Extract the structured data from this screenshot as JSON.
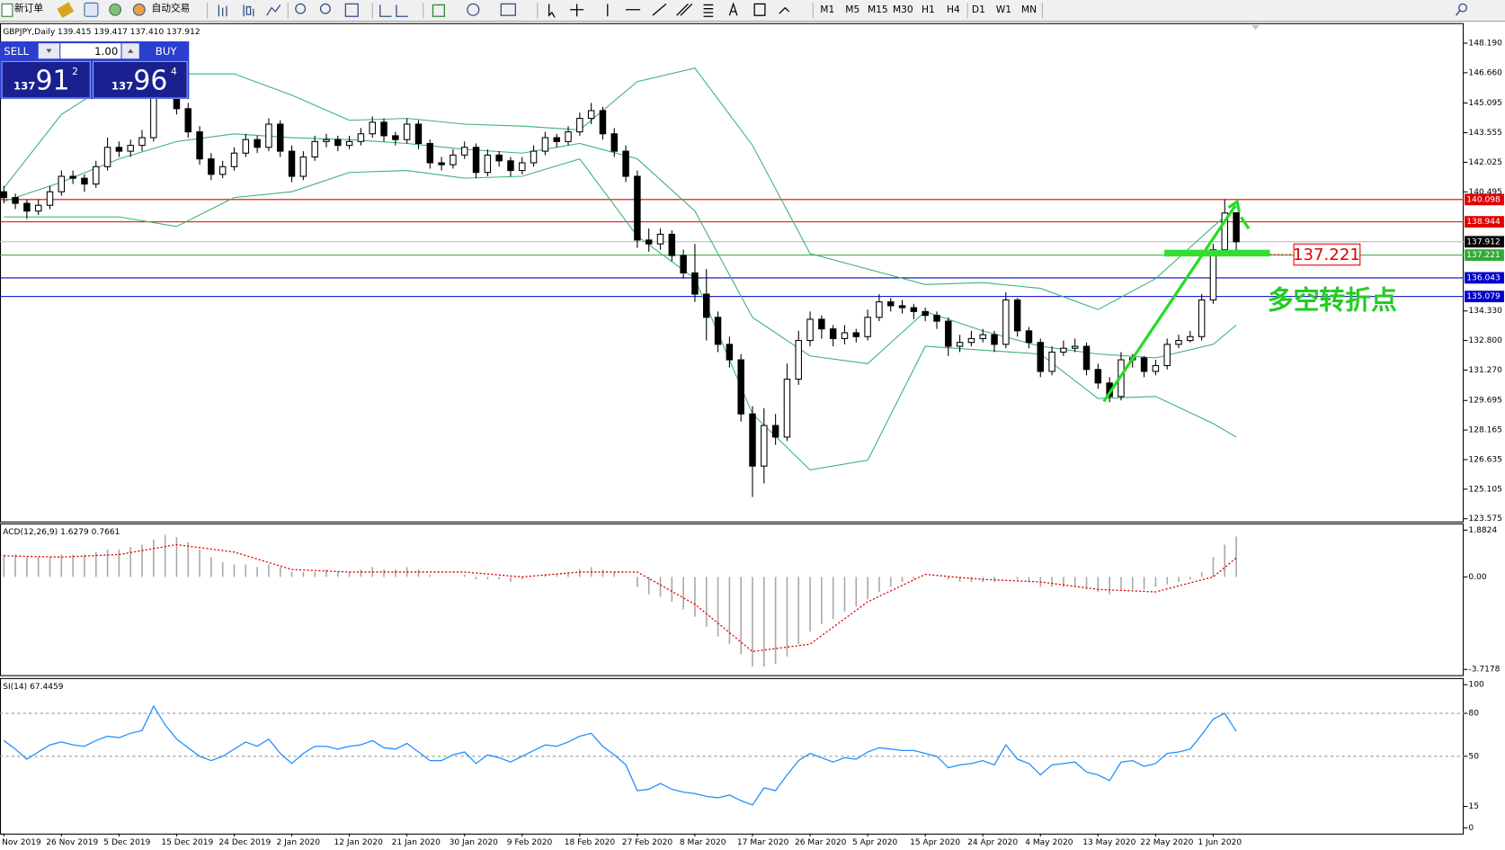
{
  "toolbar": {
    "new_order": "新订单",
    "auto_trading": "自动交易",
    "timeframes": [
      "M1",
      "M5",
      "M15",
      "M30",
      "H1",
      "H4",
      "D1",
      "W1",
      "MN"
    ]
  },
  "trade_panel": {
    "sell": "SELL",
    "buy": "BUY",
    "volume": "1.00",
    "bid": [
      "137",
      "91",
      "2"
    ],
    "ask": [
      "137",
      "96",
      "4"
    ]
  },
  "chart_data": [
    {
      "type": "candlestick",
      "title": "GBPJPY,Daily 139.415 139.417 137.410 137.912",
      "xlim": [
        -0.3333,
        126.75
      ],
      "ylim": [
        123.43,
        149.18
      ],
      "yticks": [
        {
          "value": 148.19,
          "label": "148.190"
        },
        {
          "value": 146.66,
          "label": "146.660"
        },
        145.095,
        143.555,
        142.025,
        140.495,
        {
          "value": 134.33,
          "label": "134.330"
        },
        {
          "value": 132.8,
          "label": "132.800"
        },
        {
          "value": 131.27,
          "label": "131.270"
        },
        129.695,
        128.165,
        126.635,
        125.105,
        123.575
      ],
      "open": [
        140.5,
        140.2,
        139.9,
        139.5,
        139.8,
        140.5,
        141.3,
        141.2,
        140.9,
        141.8,
        142.8,
        142.6,
        142.9,
        143.3,
        146.0,
        147.2,
        144.8,
        143.6,
        142.2,
        141.4,
        141.8,
        142.5,
        143.2,
        142.8,
        144.0,
        142.6,
        141.3,
        142.3,
        143.1,
        143.2,
        142.9,
        143.1,
        143.5,
        144.1,
        143.4,
        143.2,
        144.0,
        143.0,
        142.0,
        141.9,
        142.4,
        142.8,
        141.5,
        142.4,
        142.1,
        141.6,
        142.0,
        142.6,
        143.3,
        143.1,
        143.6,
        144.3,
        144.7,
        143.5,
        142.6,
        141.3,
        138.0,
        137.8,
        138.3,
        137.2,
        136.3,
        135.2,
        134.0,
        132.6,
        131.8,
        129.0,
        126.3,
        128.4,
        127.8,
        130.8,
        132.8,
        133.9,
        133.4,
        132.9,
        133.2,
        133.0,
        134.0,
        134.8,
        134.6,
        134.5,
        134.3,
        134.1,
        133.8,
        132.5,
        132.7,
        132.9,
        133.1,
        132.6,
        134.9,
        133.3,
        132.7,
        131.2,
        132.2,
        132.4,
        132.5,
        131.3,
        130.6,
        129.9,
        131.8,
        131.9,
        131.2,
        131.5,
        132.6,
        132.8,
        133.0,
        134.9,
        137.5,
        139.415
      ],
      "high": [
        140.8,
        140.4,
        140.1,
        140.1,
        140.8,
        141.6,
        141.6,
        141.4,
        142.1,
        143.3,
        143.1,
        143.2,
        143.7,
        146.6,
        147.9,
        147.4,
        145.1,
        143.9,
        142.5,
        142.1,
        142.8,
        143.5,
        143.4,
        144.3,
        144.2,
        142.9,
        142.6,
        143.4,
        143.5,
        143.4,
        143.4,
        143.8,
        144.4,
        144.3,
        143.6,
        144.3,
        144.2,
        143.2,
        142.3,
        142.7,
        143.1,
        143.0,
        142.7,
        142.6,
        142.3,
        142.3,
        142.9,
        143.6,
        143.5,
        143.9,
        144.6,
        145.1,
        144.9,
        143.8,
        142.9,
        141.6,
        138.6,
        138.6,
        138.5,
        137.5,
        137.8,
        136.5,
        134.3,
        133.0,
        132.1,
        129.4,
        129.3,
        129.0,
        131.6,
        133.3,
        134.3,
        134.1,
        133.6,
        133.6,
        133.4,
        134.4,
        135.2,
        135.0,
        134.9,
        134.7,
        134.5,
        134.3,
        134.0,
        133.1,
        133.3,
        133.4,
        133.3,
        135.3,
        135.0,
        133.5,
        132.9,
        132.5,
        132.8,
        132.9,
        132.7,
        131.6,
        130.9,
        132.2,
        132.1,
        132.0,
        131.8,
        132.9,
        133.1,
        133.3,
        135.2,
        137.8,
        140.1,
        139.417
      ],
      "low": [
        139.9,
        139.6,
        139.1,
        139.3,
        139.6,
        140.3,
        140.9,
        140.5,
        140.7,
        141.6,
        142.3,
        142.3,
        142.6,
        143.1,
        145.6,
        144.5,
        143.3,
        141.9,
        141.1,
        141.2,
        141.6,
        142.3,
        142.5,
        142.6,
        142.3,
        141.0,
        141.1,
        142.1,
        142.8,
        142.6,
        142.7,
        142.9,
        143.3,
        143.1,
        142.9,
        143.0,
        142.7,
        141.7,
        141.6,
        141.7,
        142.2,
        141.2,
        141.3,
        141.8,
        141.3,
        141.4,
        141.8,
        142.4,
        142.8,
        142.9,
        143.4,
        144.0,
        143.2,
        142.3,
        141.0,
        137.6,
        137.4,
        137.5,
        136.9,
        136.0,
        134.8,
        132.8,
        132.2,
        131.4,
        128.6,
        124.7,
        125.4,
        127.4,
        127.6,
        130.5,
        132.5,
        132.9,
        132.5,
        132.6,
        132.7,
        132.8,
        133.8,
        134.3,
        134.2,
        133.9,
        133.8,
        133.4,
        132.0,
        132.2,
        132.5,
        132.7,
        132.2,
        132.4,
        133.0,
        132.4,
        130.9,
        131.0,
        132.0,
        132.2,
        131.0,
        130.3,
        129.6,
        129.7,
        131.4,
        130.9,
        131.0,
        131.3,
        132.4,
        132.7,
        132.8,
        134.7,
        137.3,
        137.41
      ],
      "close": [
        140.2,
        139.9,
        139.5,
        139.8,
        140.5,
        141.3,
        141.2,
        140.9,
        141.8,
        142.8,
        142.6,
        142.9,
        143.3,
        146.0,
        147.2,
        144.8,
        143.6,
        142.2,
        141.4,
        141.8,
        142.5,
        143.2,
        142.8,
        144.0,
        142.6,
        141.3,
        142.3,
        143.1,
        143.2,
        142.9,
        143.1,
        143.5,
        144.1,
        143.4,
        143.2,
        144.0,
        143.0,
        142.0,
        141.9,
        142.4,
        142.8,
        141.5,
        142.4,
        142.1,
        141.6,
        142.0,
        142.6,
        143.3,
        143.1,
        143.6,
        144.3,
        144.7,
        143.5,
        142.6,
        141.3,
        138.0,
        137.8,
        138.3,
        137.2,
        136.3,
        135.2,
        134.0,
        132.6,
        131.8,
        129.0,
        126.3,
        128.4,
        127.8,
        130.8,
        132.8,
        133.9,
        133.4,
        132.9,
        133.2,
        133.0,
        134.0,
        134.8,
        134.6,
        134.5,
        134.3,
        134.1,
        133.8,
        132.5,
        132.7,
        132.9,
        133.1,
        132.6,
        134.9,
        133.3,
        132.7,
        131.2,
        132.2,
        132.4,
        132.5,
        131.3,
        130.6,
        129.9,
        131.8,
        131.9,
        131.2,
        131.5,
        132.6,
        132.8,
        133.0,
        134.9,
        137.5,
        139.4,
        137.912
      ],
      "bands": {
        "color": "#3cb371",
        "x": [
          0,
          5,
          10,
          15,
          20,
          25,
          30,
          35,
          40,
          45,
          50,
          55,
          60,
          65,
          70,
          75,
          80,
          85,
          90,
          95,
          100,
          105,
          107
        ],
        "upper": [
          140.7,
          144.5,
          146.4,
          146.6,
          146.6,
          145.5,
          144.2,
          144.3,
          144.0,
          143.9,
          143.7,
          146.2,
          146.9,
          142.9,
          137.3,
          136.5,
          135.7,
          135.8,
          135.5,
          134.4,
          136.0,
          138.7,
          139.7
        ],
        "middle": [
          140.0,
          141.0,
          142.2,
          143.1,
          143.5,
          143.3,
          143.2,
          143.0,
          142.7,
          142.5,
          143.0,
          142.2,
          139.5,
          134.0,
          132.0,
          131.6,
          134.3,
          133.3,
          132.5,
          132.1,
          131.9,
          132.6,
          133.6
        ],
        "lower": [
          139.2,
          139.2,
          139.2,
          138.7,
          140.2,
          140.5,
          141.5,
          141.6,
          141.2,
          141.3,
          142.2,
          138.2,
          136.0,
          129.0,
          126.1,
          126.6,
          132.5,
          132.3,
          132.1,
          129.8,
          129.9,
          128.5,
          127.8
        ]
      },
      "levels": [
        {
          "value": 140.098,
          "color": "#e00000"
        },
        {
          "value": 138.944,
          "color": "#e00000"
        },
        {
          "value": 137.912,
          "color": "#b4b4b4",
          "label_color": "#000000"
        },
        {
          "value": 137.221,
          "color": "#33aa33"
        },
        {
          "value": 136.043,
          "color": "#0000cc"
        },
        {
          "value": 135.079,
          "color": "#0000cc"
        }
      ],
      "annotation": "137.221",
      "annotation_text": "多空转折点"
    },
    {
      "type": "macd",
      "title": "ACD(12,26,9) 1.6279 0.7661",
      "xlim": [
        -0.3333,
        126.75
      ],
      "ylim": [
        -3.948,
        2.113
      ],
      "yticks": [
        1.8824,
        {
          "value": 0,
          "label": "0.00"
        },
        -3.7178
      ],
      "color": "#a8a8a8",
      "histogram": [
        0.9,
        0.9,
        0.8,
        0.8,
        0.8,
        0.9,
        0.9,
        0.9,
        1.0,
        1.1,
        1.1,
        1.2,
        1.3,
        1.5,
        1.7,
        1.6,
        1.4,
        1.1,
        0.8,
        0.6,
        0.5,
        0.5,
        0.4,
        0.5,
        0.4,
        0.2,
        0.2,
        0.2,
        0.3,
        0.2,
        0.2,
        0.3,
        0.4,
        0.3,
        0.3,
        0.4,
        0.3,
        0.1,
        0.0,
        0.0,
        0.1,
        -0.1,
        -0.1,
        -0.1,
        -0.2,
        -0.1,
        0.0,
        0.1,
        0.1,
        0.2,
        0.3,
        0.4,
        0.3,
        0.2,
        0.0,
        -0.4,
        -0.7,
        -0.8,
        -1.0,
        -1.3,
        -1.6,
        -2.0,
        -2.4,
        -2.7,
        -3.1,
        -3.6,
        -3.6,
        -3.5,
        -3.2,
        -2.7,
        -2.2,
        -1.9,
        -1.7,
        -1.4,
        -1.2,
        -0.9,
        -0.6,
        -0.4,
        -0.2,
        -0.1,
        0.0,
        0.0,
        -0.1,
        -0.2,
        -0.2,
        -0.2,
        -0.2,
        0.0,
        -0.1,
        -0.2,
        -0.4,
        -0.4,
        -0.4,
        -0.4,
        -0.5,
        -0.6,
        -0.7,
        -0.5,
        -0.5,
        -0.5,
        -0.4,
        -0.3,
        -0.2,
        -0.1,
        0.2,
        0.8,
        1.3,
        1.6279
      ],
      "signal": {
        "color": "#e00000",
        "x": [
          0,
          5,
          10,
          15,
          20,
          25,
          30,
          35,
          40,
          45,
          50,
          55,
          60,
          65,
          70,
          75,
          80,
          85,
          90,
          95,
          100,
          105,
          107
        ],
        "values": [
          0.85,
          0.8,
          0.9,
          1.3,
          1.0,
          0.3,
          0.2,
          0.2,
          0.2,
          0.0,
          0.2,
          0.2,
          -1.1,
          -3.0,
          -2.7,
          -1.0,
          0.1,
          -0.1,
          -0.2,
          -0.5,
          -0.6,
          0.0,
          0.7661
        ]
      }
    },
    {
      "type": "line",
      "title": "SI(14) 67.4459",
      "xlim": [
        -0.3333,
        126.75
      ],
      "ylim": [
        -4,
        104
      ],
      "yticks": [
        100,
        80,
        50,
        15,
        0
      ],
      "levels": [
        80,
        50
      ],
      "color": "#1e90ff",
      "values": [
        61,
        55,
        48,
        53,
        58,
        60,
        58,
        57,
        61,
        64,
        63,
        66,
        68,
        85,
        72,
        62,
        56,
        50,
        47,
        50,
        55,
        60,
        57,
        62,
        52,
        45,
        52,
        57,
        57,
        55,
        57,
        58,
        61,
        56,
        55,
        59,
        53,
        47,
        47,
        51,
        53,
        45,
        51,
        49,
        46,
        50,
        54,
        58,
        57,
        60,
        64,
        66,
        57,
        51,
        44,
        26,
        27,
        31,
        27,
        25,
        24,
        22,
        21,
        23,
        19,
        16,
        28,
        26,
        37,
        47,
        52,
        49,
        46,
        49,
        48,
        53,
        56,
        55,
        54,
        54,
        52,
        50,
        42,
        44,
        45,
        47,
        44,
        58,
        48,
        45,
        37,
        44,
        45,
        46,
        39,
        37,
        33,
        46,
        47,
        43,
        45,
        52,
        53,
        55,
        65,
        76,
        80,
        67.4459
      ],
      "xticks": [
        {
          "value": 0,
          "label": "Nov 2019"
        },
        {
          "value": 5,
          "label": "26 Nov 2019"
        },
        {
          "value": 10,
          "label": "5 Dec 2019"
        },
        {
          "value": 15,
          "label": "15 Dec 2019"
        },
        {
          "value": 20,
          "label": "24 Dec 2019"
        },
        {
          "value": 25,
          "label": "2 Jan 2020"
        },
        {
          "value": 30,
          "label": "12 Jan 2020"
        },
        {
          "value": 35,
          "label": "21 Jan 2020"
        },
        {
          "value": 40,
          "label": "30 Jan 2020"
        },
        {
          "value": 45,
          "label": "9 Feb 2020"
        },
        {
          "value": 50,
          "label": "18 Feb 2020"
        },
        {
          "value": 55,
          "label": "27 Feb 2020"
        },
        {
          "value": 60,
          "label": "8 Mar 2020"
        },
        {
          "value": 65,
          "label": "17 Mar 2020"
        },
        {
          "value": 70,
          "label": "26 Mar 2020"
        },
        {
          "value": 75,
          "label": "5 Apr 2020"
        },
        {
          "value": 80,
          "label": "15 Apr 2020"
        },
        {
          "value": 85,
          "label": "24 Apr 2020"
        },
        {
          "value": 90,
          "label": "4 May 2020"
        },
        {
          "value": 95,
          "label": "13 May 2020"
        },
        {
          "value": 100,
          "label": "22 May 2020"
        },
        {
          "value": 105,
          "label": "1 Jun 2020"
        }
      ]
    }
  ]
}
